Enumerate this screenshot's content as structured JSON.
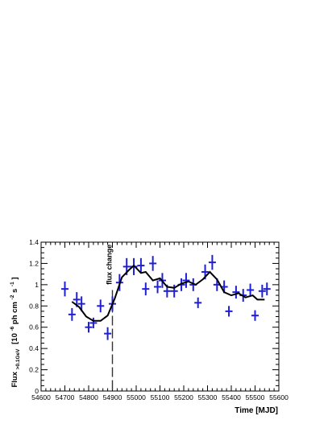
{
  "chart_data": {
    "type": "scatter",
    "xlabel": "Time [MJD]",
    "ylabel_main": "Flux",
    "ylabel_sub": ">0.1GeV",
    "ylabel_unit": "[10",
    "ylabel_unit_exp": "-6",
    "ylabel_unit_mid": " ph cm",
    "ylabel_unit_exp2": "-2",
    "ylabel_unit_end": " s",
    "ylabel_unit_exp3": "-1",
    "ylabel_unit_close": "]",
    "xlim": [
      54600,
      55600
    ],
    "ylim": [
      0,
      1.4
    ],
    "x_ticks": [
      "54600",
      "54700",
      "54800",
      "54900",
      "55000",
      "55100",
      "55200",
      "55300",
      "55400",
      "55500",
      "55600"
    ],
    "y_ticks": [
      "0",
      "0.2",
      "0.4",
      "0.6",
      "0.8",
      "1",
      "1.2",
      "1.4"
    ],
    "annotation": {
      "text": "flux change",
      "x": 54900
    },
    "points": [
      {
        "x": 54700,
        "y": 0.96,
        "err": 0.07
      },
      {
        "x": 54730,
        "y": 0.72,
        "err": 0.06
      },
      {
        "x": 54750,
        "y": 0.86,
        "err": 0.07
      },
      {
        "x": 54770,
        "y": 0.82,
        "err": 0.07
      },
      {
        "x": 54800,
        "y": 0.6,
        "err": 0.05
      },
      {
        "x": 54820,
        "y": 0.64,
        "err": 0.05
      },
      {
        "x": 54850,
        "y": 0.8,
        "err": 0.06
      },
      {
        "x": 54880,
        "y": 0.54,
        "err": 0.06
      },
      {
        "x": 54900,
        "y": 0.82,
        "err": 0.07
      },
      {
        "x": 54930,
        "y": 1.02,
        "err": 0.08
      },
      {
        "x": 54960,
        "y": 1.17,
        "err": 0.08
      },
      {
        "x": 54990,
        "y": 1.17,
        "err": 0.08
      },
      {
        "x": 55020,
        "y": 1.18,
        "err": 0.07
      },
      {
        "x": 55040,
        "y": 0.96,
        "err": 0.06
      },
      {
        "x": 55070,
        "y": 1.2,
        "err": 0.07
      },
      {
        "x": 55090,
        "y": 0.98,
        "err": 0.06
      },
      {
        "x": 55110,
        "y": 1.04,
        "err": 0.07
      },
      {
        "x": 55130,
        "y": 0.94,
        "err": 0.06
      },
      {
        "x": 55160,
        "y": 0.94,
        "err": 0.06
      },
      {
        "x": 55190,
        "y": 1.0,
        "err": 0.06
      },
      {
        "x": 55210,
        "y": 1.04,
        "err": 0.07
      },
      {
        "x": 55240,
        "y": 1.0,
        "err": 0.06
      },
      {
        "x": 55260,
        "y": 0.83,
        "err": 0.05
      },
      {
        "x": 55290,
        "y": 1.12,
        "err": 0.07
      },
      {
        "x": 55320,
        "y": 1.21,
        "err": 0.07
      },
      {
        "x": 55340,
        "y": 1.0,
        "err": 0.06
      },
      {
        "x": 55370,
        "y": 0.98,
        "err": 0.06
      },
      {
        "x": 55390,
        "y": 0.75,
        "err": 0.05
      },
      {
        "x": 55420,
        "y": 0.93,
        "err": 0.06
      },
      {
        "x": 55450,
        "y": 0.9,
        "err": 0.06
      },
      {
        "x": 55480,
        "y": 0.95,
        "err": 0.06
      },
      {
        "x": 55500,
        "y": 0.71,
        "err": 0.05
      },
      {
        "x": 55530,
        "y": 0.94,
        "err": 0.06
      },
      {
        "x": 55550,
        "y": 0.96,
        "err": 0.06
      }
    ],
    "model_line": [
      {
        "x": 54730,
        "y": 0.84
      },
      {
        "x": 54760,
        "y": 0.79
      },
      {
        "x": 54790,
        "y": 0.7
      },
      {
        "x": 54820,
        "y": 0.66
      },
      {
        "x": 54850,
        "y": 0.66
      },
      {
        "x": 54880,
        "y": 0.71
      },
      {
        "x": 54910,
        "y": 0.87
      },
      {
        "x": 54940,
        "y": 1.07
      },
      {
        "x": 54970,
        "y": 1.14
      },
      {
        "x": 54990,
        "y": 1.18
      },
      {
        "x": 55020,
        "y": 1.11
      },
      {
        "x": 55040,
        "y": 1.12
      },
      {
        "x": 55070,
        "y": 1.04
      },
      {
        "x": 55100,
        "y": 1.06
      },
      {
        "x": 55130,
        "y": 0.98
      },
      {
        "x": 55160,
        "y": 0.97
      },
      {
        "x": 55190,
        "y": 1.01
      },
      {
        "x": 55220,
        "y": 1.03
      },
      {
        "x": 55250,
        "y": 1.0
      },
      {
        "x": 55280,
        "y": 1.05
      },
      {
        "x": 55310,
        "y": 1.12
      },
      {
        "x": 55340,
        "y": 1.05
      },
      {
        "x": 55370,
        "y": 0.93
      },
      {
        "x": 55400,
        "y": 0.9
      },
      {
        "x": 55430,
        "y": 0.92
      },
      {
        "x": 55460,
        "y": 0.88
      },
      {
        "x": 55490,
        "y": 0.9
      },
      {
        "x": 55510,
        "y": 0.86
      },
      {
        "x": 55540,
        "y": 0.86
      }
    ],
    "colors": {
      "points": "#1f1fd6",
      "line": "#000000",
      "frame": "#000000",
      "marker": "#333333"
    },
    "grid": false
  }
}
